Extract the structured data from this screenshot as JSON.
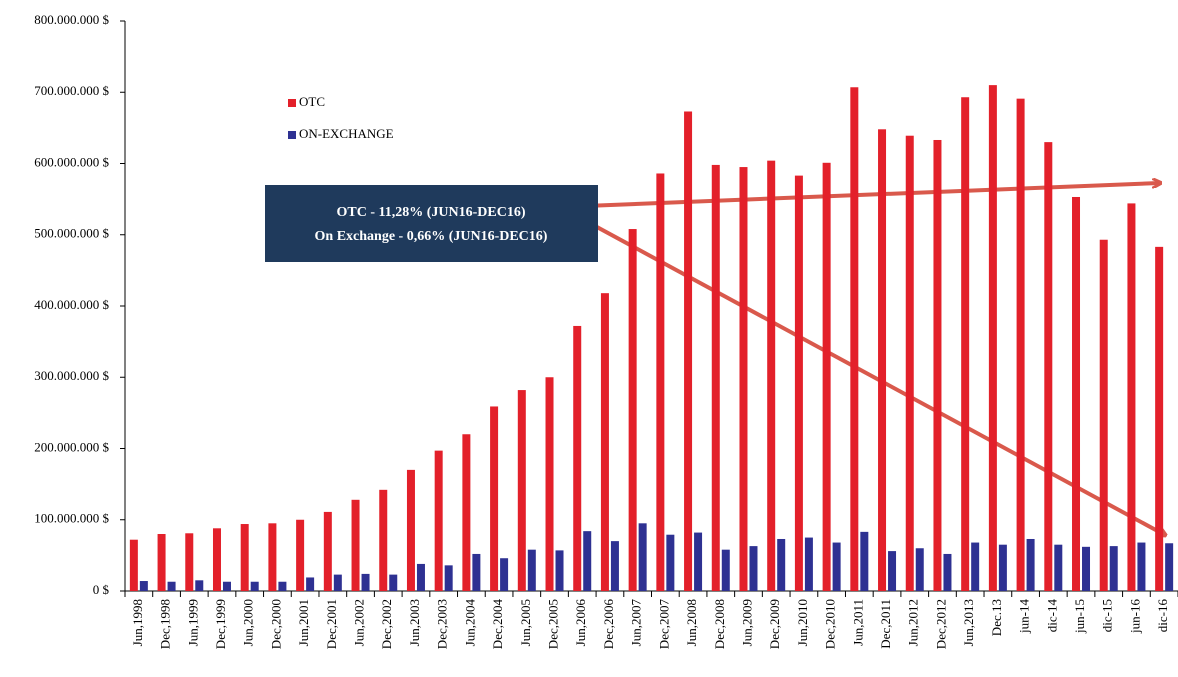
{
  "chart_data": {
    "type": "bar",
    "categories": [
      "Jun,1998",
      "Dec,1998",
      "Jun,1999",
      "Dec,1999",
      "Jun,2000",
      "Dec,2000",
      "Jun,2001",
      "Dec,2001",
      "Jun,2002",
      "Dec,2002",
      "Jun,2003",
      "Dec,2003",
      "Jun,2004",
      "Dec,2004",
      "Jun,2005",
      "Dec,2005",
      "Jun,2006",
      "Dec,2006",
      "Jun,2007",
      "Dec,2007",
      "Jun,2008",
      "Dec,2008",
      "Jun,2009",
      "Dec,2009",
      "Jun,2010",
      "Dec,2010",
      "Jun,2011",
      "Dec,2011",
      "Jun,2012",
      "Dec,2012",
      "Jun,2013",
      "Dec.13",
      "jun-14",
      "dic-14",
      "jun-15",
      "dic-15",
      "jun-16",
      "dic-16"
    ],
    "series": [
      {
        "name": "OTC",
        "color": "#e3202a",
        "values": [
          72000000,
          80000000,
          81000000,
          88000000,
          94000000,
          95000000,
          100000000,
          111000000,
          128000000,
          142000000,
          170000000,
          197000000,
          220000000,
          259000000,
          282000000,
          300000000,
          372000000,
          418000000,
          508000000,
          586000000,
          673000000,
          598000000,
          595000000,
          604000000,
          583000000,
          601000000,
          707000000,
          648000000,
          639000000,
          633000000,
          693000000,
          710000000,
          691000000,
          630000000,
          553000000,
          493000000,
          544000000,
          483000000
        ]
      },
      {
        "name": "ON-EXCHANGE",
        "color": "#2e3192",
        "values": [
          14000000,
          13000000,
          15000000,
          13000000,
          13000000,
          13000000,
          19000000,
          23000000,
          24000000,
          23000000,
          38000000,
          36000000,
          52000000,
          46000000,
          58000000,
          57000000,
          84000000,
          70000000,
          95000000,
          79000000,
          82000000,
          58000000,
          63000000,
          73000000,
          75000000,
          68000000,
          83000000,
          56000000,
          60000000,
          52000000,
          68000000,
          65000000,
          73000000,
          65000000,
          62000000,
          63000000,
          68000000,
          67000000
        ]
      }
    ],
    "ylim": [
      0,
      800000000
    ],
    "yticks": [
      {
        "value": 0,
        "label": "0 $"
      },
      {
        "value": 100000000,
        "label": "100.000.000 $"
      },
      {
        "value": 200000000,
        "label": "200.000.000 $"
      },
      {
        "value": 300000000,
        "label": "300.000.000 $"
      },
      {
        "value": 400000000,
        "label": "400.000.000 $"
      },
      {
        "value": 500000000,
        "label": "500.000.000 $"
      },
      {
        "value": 600000000,
        "label": "600.000.000 $"
      },
      {
        "value": 700000000,
        "label": "700.000.000 $"
      },
      {
        "value": 800000000,
        "label": "800.000.000 $"
      }
    ],
    "annotation": [
      "OTC - 11,28% (JUN16-DEC16)",
      "On Exchange - 0,66% (JUN16-DEC16)"
    ]
  }
}
